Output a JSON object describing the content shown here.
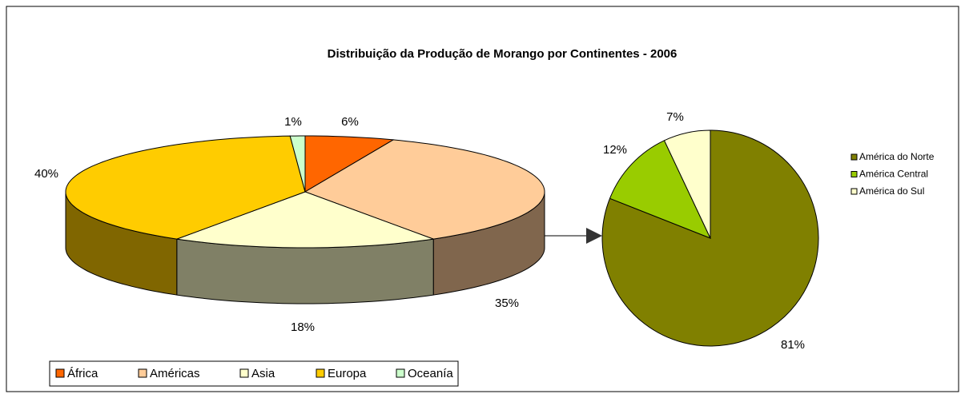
{
  "chart_data": [
    {
      "type": "pie3d",
      "title": "Distribuição da Produção de Morango por Continentes - 2006",
      "categories": [
        "África",
        "Américas",
        "Asia",
        "Europa",
        "Oceanía"
      ],
      "values": [
        6,
        35,
        18,
        40,
        1
      ],
      "value_labels": [
        "6%",
        "35%",
        "18%",
        "40%",
        "1%"
      ],
      "colors": [
        "#ff6600",
        "#ffcc99",
        "#ffffcc",
        "#ffcc00",
        "#ccffcc"
      ],
      "legend": "bottom-left"
    },
    {
      "type": "pie",
      "categories": [
        "América do Norte",
        "América Central",
        "América do Sul"
      ],
      "values": [
        81,
        12,
        7
      ],
      "value_labels": [
        "81%",
        "12%",
        "7%"
      ],
      "colors": [
        "#808000",
        "#99cc00",
        "#ffffcc"
      ],
      "legend": "right"
    }
  ]
}
